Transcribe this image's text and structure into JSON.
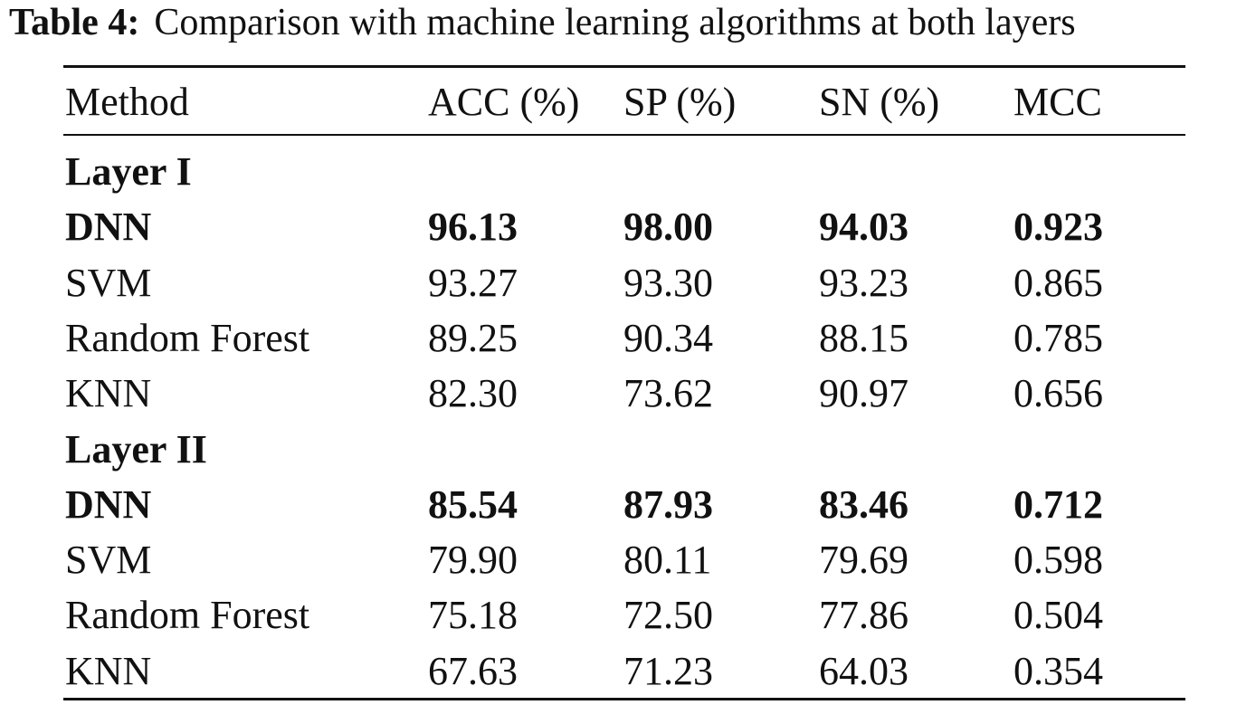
{
  "caption": {
    "label": "Table 4:",
    "text": "Comparison with machine learning algorithms at both layers"
  },
  "table": {
    "headers": [
      "Method",
      "ACC (%)",
      "SP (%)",
      "SN (%)",
      "MCC"
    ],
    "groups": [
      {
        "name": "Layer I",
        "rows": [
          {
            "cells": [
              "DNN",
              "96.13",
              "98.00",
              "94.03",
              "0.923"
            ],
            "bold": true
          },
          {
            "cells": [
              "SVM",
              "93.27",
              "93.30",
              "93.23",
              "0.865"
            ],
            "bold": false
          },
          {
            "cells": [
              "Random Forest",
              "89.25",
              "90.34",
              "88.15",
              "0.785"
            ],
            "bold": false
          },
          {
            "cells": [
              "KNN",
              "82.30",
              "73.62",
              "90.97",
              "0.656"
            ],
            "bold": false
          }
        ]
      },
      {
        "name": "Layer II",
        "rows": [
          {
            "cells": [
              "DNN",
              "85.54",
              "87.93",
              "83.46",
              "0.712"
            ],
            "bold": true
          },
          {
            "cells": [
              "SVM",
              "79.90",
              "80.11",
              "79.69",
              "0.598"
            ],
            "bold": false
          },
          {
            "cells": [
              "Random Forest",
              "75.18",
              "72.50",
              "77.86",
              "0.504"
            ],
            "bold": false
          },
          {
            "cells": [
              "KNN",
              "67.63",
              "71.23",
              "64.03",
              "0.354"
            ],
            "bold": false
          }
        ]
      }
    ]
  }
}
